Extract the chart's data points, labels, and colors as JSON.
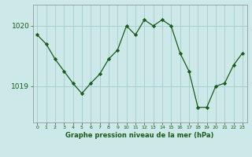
{
  "x": [
    0,
    1,
    2,
    3,
    4,
    5,
    6,
    7,
    8,
    9,
    10,
    11,
    12,
    13,
    14,
    15,
    16,
    17,
    18,
    19,
    20,
    21,
    22,
    23
  ],
  "y": [
    1019.85,
    1019.7,
    1019.45,
    1019.25,
    1019.05,
    1018.88,
    1019.05,
    1019.2,
    1019.45,
    1019.6,
    1020.0,
    1019.85,
    1020.1,
    1020.0,
    1020.1,
    1020.0,
    1019.55,
    1019.25,
    1018.65,
    1018.65,
    1019.0,
    1019.05,
    1019.35,
    1019.55
  ],
  "line_color": "#1a5c1a",
  "marker": "D",
  "marker_size": 2.2,
  "background_color": "#cce8e8",
  "grid_color": "#aad0d0",
  "axis_label_color": "#1a5c1a",
  "tick_color": "#1a5c1a",
  "xlabel": "Graphe pression niveau de la mer (hPa)",
  "ylim": [
    1018.4,
    1020.35
  ],
  "xlim": [
    -0.5,
    23.5
  ],
  "yticks": [
    1019,
    1020
  ],
  "xticks": [
    0,
    1,
    2,
    3,
    4,
    5,
    6,
    7,
    8,
    9,
    10,
    11,
    12,
    13,
    14,
    15,
    16,
    17,
    18,
    19,
    20,
    21,
    22,
    23
  ],
  "xtick_labels": [
    "0",
    "1",
    "2",
    "3",
    "4",
    "5",
    "6",
    "7",
    "8",
    "9",
    "10",
    "11",
    "12",
    "13",
    "14",
    "15",
    "16",
    "17",
    "18",
    "19",
    "20",
    "21",
    "22",
    "23"
  ]
}
